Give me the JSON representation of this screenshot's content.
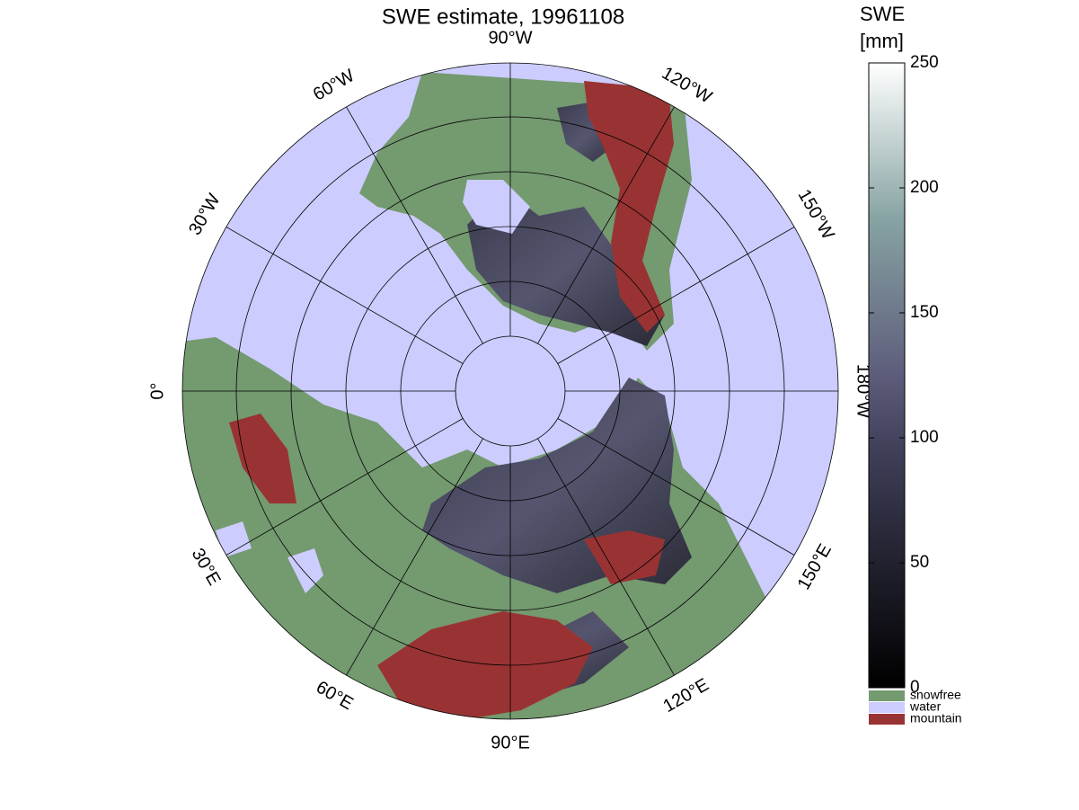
{
  "title": "SWE estimate, 19961108",
  "longitude_labels": [
    "90°W",
    "120°W",
    "150°W",
    "180°W",
    "150°E",
    "120°E",
    "90°E",
    "60°E",
    "30°E",
    "0°",
    "30°W",
    "60°W"
  ],
  "colorbar": {
    "label": [
      "SWE",
      "[mm]"
    ],
    "lim": [
      0,
      250
    ],
    "ticks": [
      0,
      50,
      100,
      150,
      200,
      250
    ]
  },
  "legend": [
    {
      "label": "snowfree",
      "color": "#749a70"
    },
    {
      "label": "water",
      "color": "#ccccff"
    },
    {
      "label": "mountain",
      "color": "#993333"
    }
  ]
}
